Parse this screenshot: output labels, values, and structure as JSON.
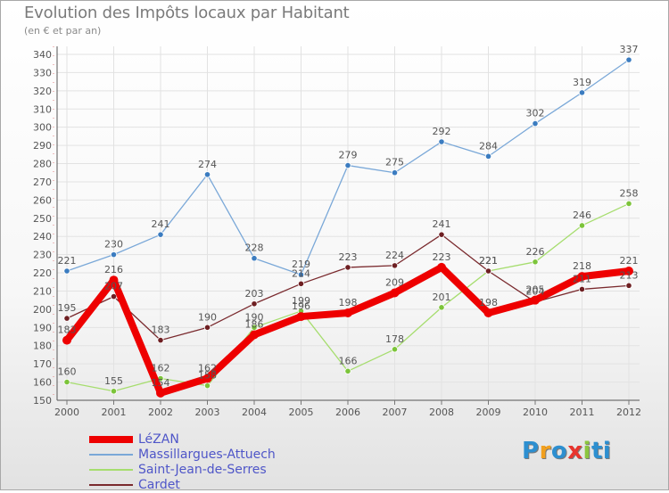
{
  "header": {
    "title": "Evolution des Impôts locaux par Habitant",
    "subtitle": "(en € et par an)"
  },
  "logo": {
    "text": "Proxiti",
    "letter_colors": [
      "#2d8fd0",
      "#f2a01e",
      "#2d8fd0",
      "#e8342d",
      "#8cc63f",
      "#2d8fd0",
      "#2d8fd0"
    ]
  },
  "chart_data": {
    "type": "line",
    "title": "Evolution des Impôts locaux par Habitant",
    "subtitle": "(en € et par an)",
    "xlabel": "",
    "ylabel": "",
    "x": [
      "2000",
      "2001",
      "2002",
      "2003",
      "2004",
      "2005",
      "2006",
      "2007",
      "2008",
      "2009",
      "2010",
      "2011",
      "2012"
    ],
    "ylim": [
      150,
      340
    ],
    "yticks": [
      150,
      160,
      170,
      180,
      190,
      200,
      210,
      220,
      230,
      240,
      250,
      260,
      270,
      280,
      290,
      300,
      310,
      320,
      330,
      340
    ],
    "grid": true,
    "legend_position": "bottom-left",
    "series": [
      {
        "name": "LéZAN",
        "color": "#ee0000",
        "values": [
          183,
          216,
          154,
          162,
          186,
          196,
          198,
          209,
          223,
          198,
          205,
          218,
          221
        ],
        "labels": [
          "183",
          "216",
          "154",
          "162",
          "186",
          "196",
          "198",
          "209",
          "223",
          "198",
          "205",
          "218",
          "221"
        ],
        "emphasis": true
      },
      {
        "name": "Massillargues-Attuech",
        "color": "#7aa8d8",
        "marker_color": "#3b7cc0",
        "values": [
          221,
          230,
          241,
          274,
          228,
          219,
          279,
          275,
          292,
          284,
          302,
          319,
          337
        ],
        "labels": [
          "221",
          "230",
          "241",
          "274",
          "228",
          "219",
          "279",
          "275",
          "292",
          "284",
          "302",
          "319",
          "337"
        ]
      },
      {
        "name": "Saint-Jean-de-Serres",
        "color": "#a6dd6e",
        "marker_color": "#7cc43a",
        "values": [
          160,
          155,
          162,
          158,
          190,
          199,
          166,
          178,
          201,
          221,
          226,
          246,
          258
        ],
        "labels": [
          "160",
          "155",
          "162",
          "158",
          "190",
          "199",
          "166",
          "178",
          "201",
          "221",
          "226",
          "246",
          "258"
        ]
      },
      {
        "name": "Cardet",
        "color": "#7a2a2e",
        "marker_color": "#6e1f22",
        "values": [
          195,
          207,
          183,
          190,
          203,
          214,
          223,
          224,
          241,
          221,
          204,
          211,
          213
        ],
        "labels": [
          "195",
          "207",
          "183",
          "190",
          "203",
          "214",
          "223",
          "224",
          "241",
          "221",
          "204",
          "211",
          "213"
        ]
      }
    ]
  }
}
